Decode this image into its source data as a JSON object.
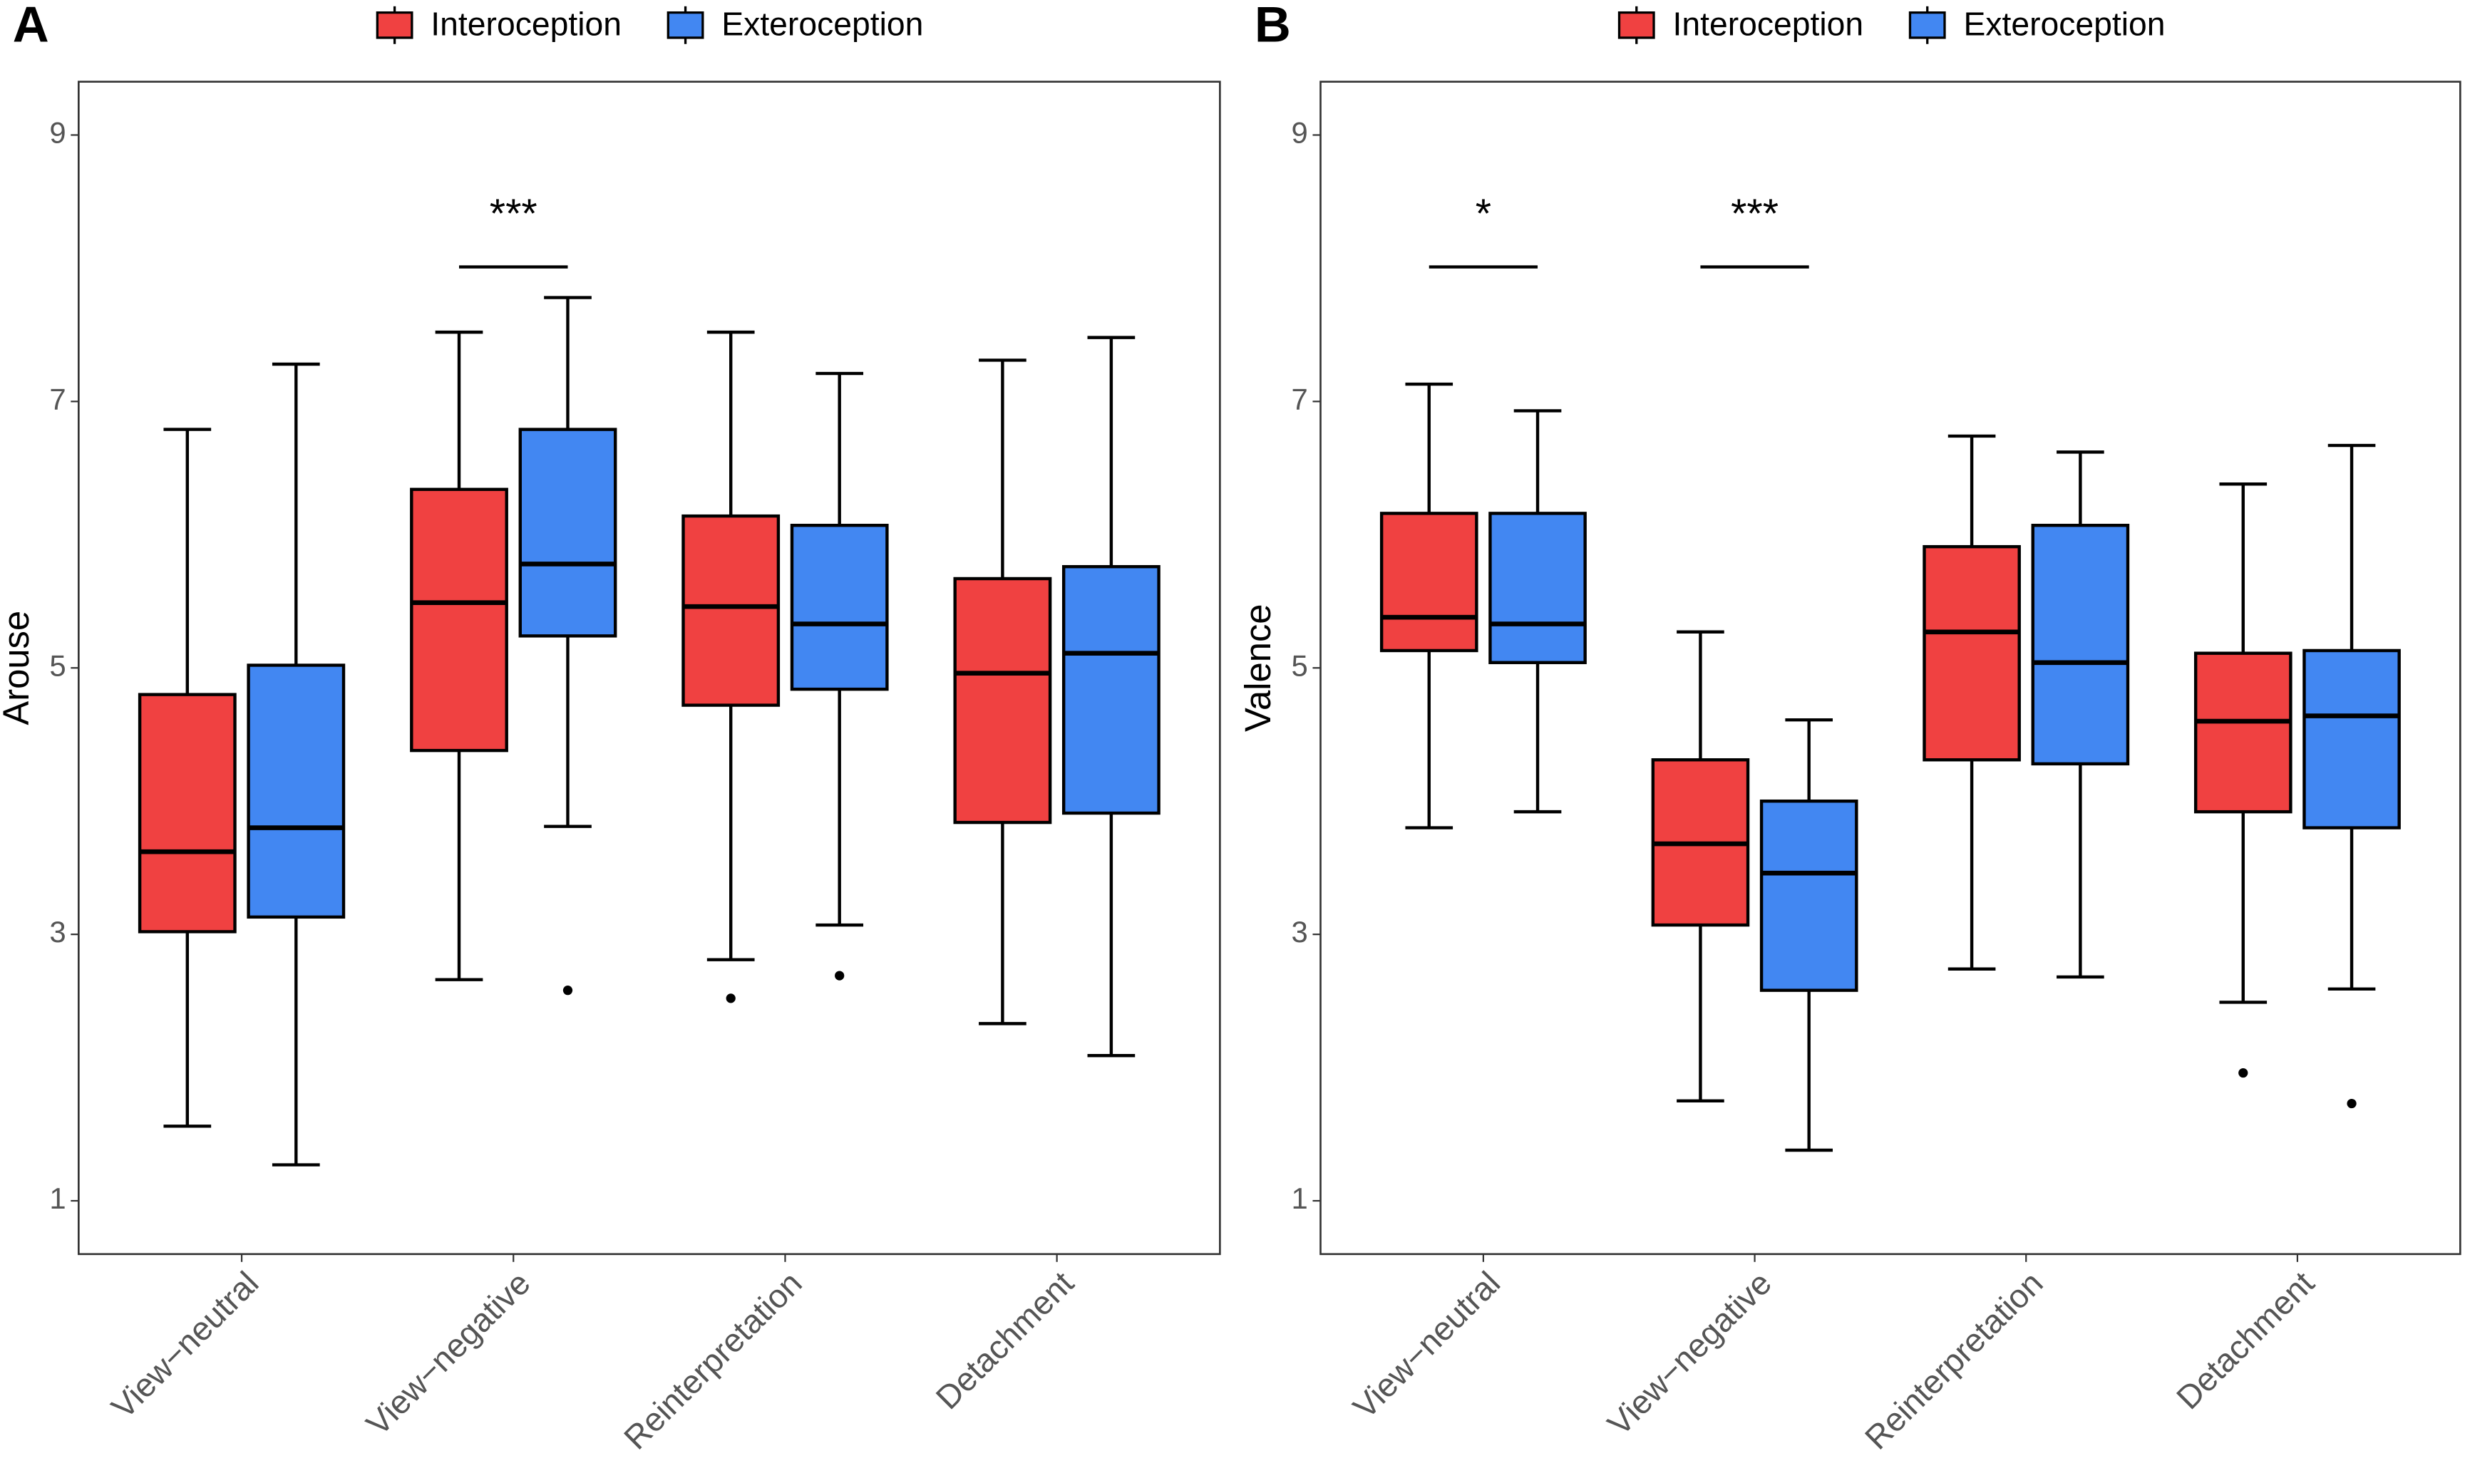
{
  "chart_data": [
    {
      "type": "box",
      "panel_label": "A",
      "y_label": "Arouse",
      "categories": [
        "View−neutral",
        "View−negative",
        "Reinterpretation",
        "Detachment"
      ],
      "ylim": [
        0.6,
        9.4
      ],
      "yticks": [
        1,
        3,
        5,
        7,
        9
      ],
      "series": [
        {
          "name": "Interoception",
          "color": "#f04141",
          "boxes": [
            {
              "min": 1.56,
              "q1": 3.02,
              "median": 3.62,
              "q3": 4.8,
              "max": 6.79,
              "outliers": []
            },
            {
              "min": 2.66,
              "q1": 4.38,
              "median": 5.49,
              "q3": 6.34,
              "max": 7.52,
              "outliers": []
            },
            {
              "min": 2.81,
              "q1": 4.72,
              "median": 5.46,
              "q3": 6.14,
              "max": 7.52,
              "outliers": [
                2.52
              ]
            },
            {
              "min": 2.33,
              "q1": 3.84,
              "median": 4.96,
              "q3": 5.67,
              "max": 7.31,
              "outliers": []
            }
          ]
        },
        {
          "name": "Exteroception",
          "color": "#4287f2",
          "boxes": [
            {
              "min": 1.27,
              "q1": 3.13,
              "median": 3.8,
              "q3": 5.02,
              "max": 7.28,
              "outliers": []
            },
            {
              "min": 3.81,
              "q1": 5.24,
              "median": 5.78,
              "q3": 6.79,
              "max": 7.78,
              "outliers": [
                2.58
              ]
            },
            {
              "min": 3.07,
              "q1": 4.84,
              "median": 5.33,
              "q3": 6.07,
              "max": 7.21,
              "outliers": [
                2.69
              ]
            },
            {
              "min": 2.09,
              "q1": 3.91,
              "median": 5.11,
              "q3": 5.76,
              "max": 7.48,
              "outliers": []
            }
          ]
        }
      ],
      "annotations": [
        {
          "text": "***",
          "category": "View−negative",
          "y": 8.01
        }
      ]
    },
    {
      "type": "box",
      "panel_label": "B",
      "y_label": "Valence",
      "categories": [
        "View−neutral",
        "View−negative",
        "Reinterpretation",
        "Detachment"
      ],
      "ylim": [
        0.6,
        9.4
      ],
      "yticks": [
        1,
        3,
        5,
        7,
        9
      ],
      "series": [
        {
          "name": "Interoception",
          "color": "#f04141",
          "boxes": [
            {
              "min": 3.8,
              "q1": 5.13,
              "median": 5.38,
              "q3": 6.16,
              "max": 7.13,
              "outliers": []
            },
            {
              "min": 1.75,
              "q1": 3.07,
              "median": 3.68,
              "q3": 4.31,
              "max": 5.27,
              "outliers": []
            },
            {
              "min": 2.74,
              "q1": 4.31,
              "median": 5.27,
              "q3": 5.91,
              "max": 6.74,
              "outliers": []
            },
            {
              "min": 2.49,
              "q1": 3.92,
              "median": 4.6,
              "q3": 5.11,
              "max": 6.38,
              "outliers": [
                1.96
              ]
            }
          ]
        },
        {
          "name": "Exteroception",
          "color": "#4287f2",
          "boxes": [
            {
              "min": 3.92,
              "q1": 5.04,
              "median": 5.33,
              "q3": 6.16,
              "max": 6.93,
              "outliers": []
            },
            {
              "min": 1.38,
              "q1": 2.58,
              "median": 3.46,
              "q3": 4.0,
              "max": 4.61,
              "outliers": []
            },
            {
              "min": 2.68,
              "q1": 4.28,
              "median": 5.04,
              "q3": 6.07,
              "max": 6.62,
              "outliers": []
            },
            {
              "min": 2.59,
              "q1": 3.8,
              "median": 4.64,
              "q3": 5.13,
              "max": 6.67,
              "outliers": [
                1.73
              ]
            }
          ]
        }
      ],
      "annotations": [
        {
          "text": "*",
          "category": "View−neutral",
          "y": 8.01
        },
        {
          "text": "***",
          "category": "View−negative",
          "y": 8.01
        }
      ]
    }
  ]
}
